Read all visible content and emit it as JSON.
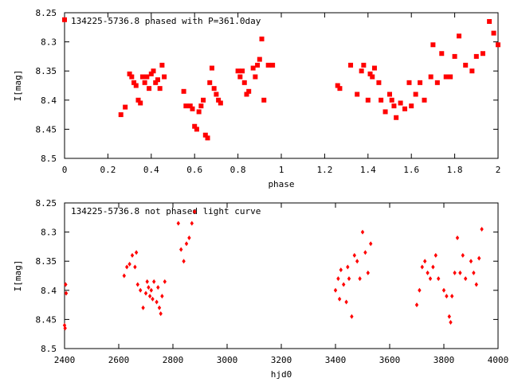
{
  "chart_data": [
    {
      "type": "scatter",
      "title": "134225-5736.8 phased with P=361.0day",
      "xlabel": "phase",
      "ylabel": "I[mag]",
      "xlim": [
        0,
        2
      ],
      "ylim": [
        8.25,
        8.5
      ],
      "y_inverted": true,
      "x_ticks": [
        "0",
        "0.2",
        "0.4",
        "0.6",
        "0.8",
        "1",
        "1.2",
        "1.4",
        "1.6",
        "1.8",
        "2"
      ],
      "y_ticks": [
        "8.25",
        "8.3",
        "8.35",
        "8.4",
        "8.45",
        "8.5"
      ],
      "marker": "filled-square",
      "color": "#ff0000",
      "series": [
        {
          "x": [
            0.0,
            0.26,
            0.28,
            0.3,
            0.31,
            0.32,
            0.33,
            0.34,
            0.35,
            0.36,
            0.37,
            0.38,
            0.39,
            0.4,
            0.41,
            0.42,
            0.43,
            0.44,
            0.45,
            0.46,
            0.55,
            0.56,
            0.58,
            0.59,
            0.6,
            0.61,
            0.62,
            0.63,
            0.64,
            0.65,
            0.66,
            0.67,
            0.68,
            0.69,
            0.7,
            0.71,
            0.72,
            0.8,
            0.81,
            0.82,
            0.83,
            0.84,
            0.85,
            0.87,
            0.88,
            0.89,
            0.9,
            0.91,
            0.92,
            0.94,
            0.96,
            1.26,
            1.27,
            1.32,
            1.35,
            1.37,
            1.38,
            1.4,
            1.41,
            1.42,
            1.43,
            1.45,
            1.46,
            1.48,
            1.5,
            1.51,
            1.52,
            1.53,
            1.55,
            1.57,
            1.59,
            1.6,
            1.62,
            1.64,
            1.66,
            1.69,
            1.7,
            1.72,
            1.74,
            1.76,
            1.78,
            1.8,
            1.82,
            1.85,
            1.88,
            1.9,
            1.93,
            1.96,
            1.98,
            2.0
          ],
          "y": [
            8.262,
            8.425,
            8.412,
            8.355,
            8.36,
            8.37,
            8.375,
            8.4,
            8.405,
            8.36,
            8.37,
            8.36,
            8.38,
            8.355,
            8.35,
            8.37,
            8.365,
            8.38,
            8.34,
            8.36,
            8.385,
            8.41,
            8.41,
            8.415,
            8.445,
            8.45,
            8.42,
            8.41,
            8.4,
            8.46,
            8.465,
            8.37,
            8.345,
            8.38,
            8.39,
            8.4,
            8.405,
            8.35,
            8.36,
            8.35,
            8.37,
            8.39,
            8.385,
            8.345,
            8.36,
            8.34,
            8.33,
            8.295,
            8.4,
            8.34,
            8.34,
            8.375,
            8.38,
            8.34,
            8.39,
            8.35,
            8.34,
            8.4,
            8.355,
            8.36,
            8.345,
            8.37,
            8.4,
            8.42,
            8.39,
            8.4,
            8.41,
            8.43,
            8.405,
            8.415,
            8.37,
            8.41,
            8.39,
            8.37,
            8.4,
            8.36,
            8.305,
            8.37,
            8.32,
            8.36,
            8.36,
            8.325,
            8.29,
            8.34,
            8.35,
            8.325,
            8.32,
            8.265,
            8.285,
            8.305
          ]
        }
      ]
    },
    {
      "type": "scatter",
      "title": "134225-5736.8 not phased light curve",
      "xlabel": "hjd0",
      "ylabel": "I[mag]",
      "xlim": [
        2400,
        4000
      ],
      "ylim": [
        8.25,
        8.5
      ],
      "y_inverted": true,
      "x_ticks": [
        "2400",
        "2600",
        "2800",
        "3000",
        "3200",
        "3400",
        "3600",
        "3800",
        "4000"
      ],
      "y_ticks": [
        "8.25",
        "8.3",
        "8.35",
        "8.4",
        "8.45",
        "8.5"
      ],
      "marker": "small-diamond",
      "color": "#ff0000",
      "series": [
        {
          "x": [
            2400,
            2402,
            2404,
            2406,
            2620,
            2630,
            2640,
            2650,
            2660,
            2665,
            2670,
            2680,
            2690,
            2700,
            2705,
            2710,
            2715,
            2720,
            2725,
            2730,
            2740,
            2745,
            2750,
            2755,
            2760,
            2770,
            2820,
            2830,
            2840,
            2850,
            2860,
            2870,
            2880,
            3400,
            3410,
            3415,
            3420,
            3430,
            3440,
            3445,
            3450,
            3460,
            3470,
            3480,
            3490,
            3500,
            3510,
            3520,
            3530,
            3700,
            3710,
            3720,
            3730,
            3740,
            3750,
            3760,
            3770,
            3780,
            3800,
            3810,
            3820,
            3825,
            3830,
            3840,
            3850,
            3860,
            3870,
            3880,
            3900,
            3910,
            3920,
            3930,
            3940
          ],
          "y": [
            8.46,
            8.465,
            8.39,
            8.405,
            8.375,
            8.36,
            8.355,
            8.34,
            8.36,
            8.335,
            8.39,
            8.4,
            8.43,
            8.405,
            8.385,
            8.395,
            8.41,
            8.4,
            8.415,
            8.385,
            8.42,
            8.395,
            8.43,
            8.44,
            8.41,
            8.385,
            8.285,
            8.33,
            8.35,
            8.32,
            8.31,
            8.285,
            8.265,
            8.4,
            8.38,
            8.415,
            8.365,
            8.39,
            8.42,
            8.36,
            8.38,
            8.445,
            8.34,
            8.35,
            8.38,
            8.3,
            8.335,
            8.37,
            8.32,
            8.425,
            8.4,
            8.36,
            8.35,
            8.37,
            8.38,
            8.36,
            8.34,
            8.38,
            8.4,
            8.41,
            8.445,
            8.455,
            8.41,
            8.37,
            8.31,
            8.37,
            8.34,
            8.38,
            8.35,
            8.37,
            8.39,
            8.345,
            8.295
          ]
        }
      ]
    }
  ]
}
